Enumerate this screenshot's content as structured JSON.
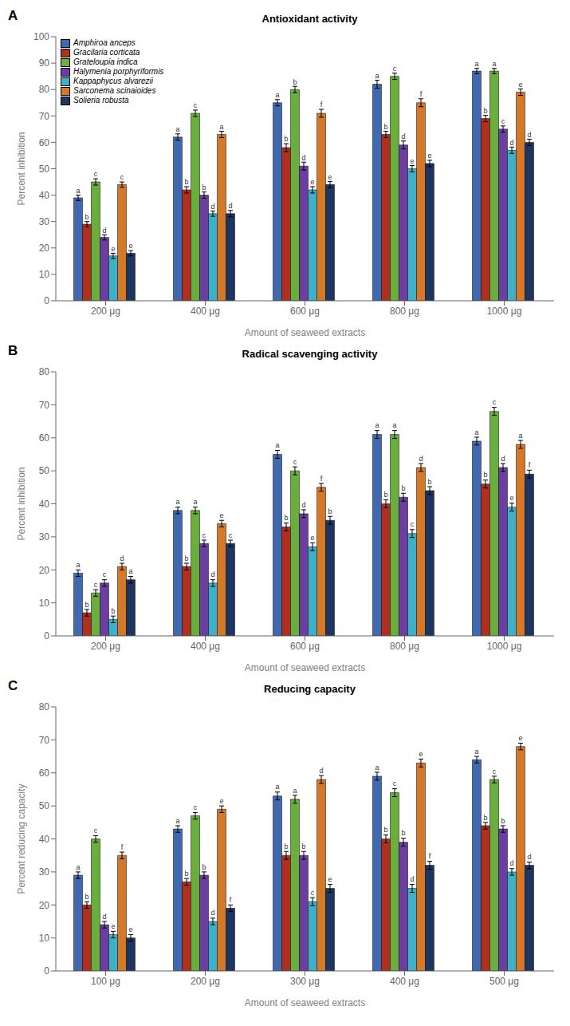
{
  "chart_data": [
    {
      "type": "bar",
      "title": "Antioxidant activity",
      "annotations": [
        "A"
      ],
      "xlabel": "Amount of seaweed extracts",
      "ylabel": "Percent inhibition",
      "categories": [
        "200 μg",
        "400 μg",
        "600 μg",
        "800 μg",
        "1000 μg"
      ],
      "ylim": [
        0,
        100
      ],
      "yticks": [
        0,
        10,
        20,
        30,
        40,
        50,
        60,
        70,
        80,
        90,
        100
      ],
      "grid": false,
      "legend": "upper left",
      "series": [
        {
          "name": "Amphiroa anceps",
          "color": "#4169B0",
          "values": [
            39,
            62,
            75,
            82,
            87
          ],
          "errors": [
            1.0,
            1.2,
            1.2,
            1.5,
            1.0
          ],
          "letters": [
            "a",
            "a",
            "a",
            "a",
            "a"
          ]
        },
        {
          "name": "Gracilaria corticata",
          "color": "#B03020",
          "values": [
            29,
            42,
            58,
            63,
            69
          ],
          "errors": [
            1.0,
            1.2,
            1.5,
            1.2,
            1.2
          ],
          "letters": [
            "b",
            "b",
            "b",
            "b",
            "b"
          ]
        },
        {
          "name": "Grateloupia indica",
          "color": "#6AAF3D",
          "values": [
            45,
            71,
            80,
            85,
            87
          ],
          "errors": [
            1.2,
            1.2,
            1.2,
            1.2,
            1.0
          ],
          "letters": [
            "c",
            "c",
            "b",
            "c",
            "a"
          ]
        },
        {
          "name": "Halymenia porphyriformis",
          "color": "#6B3FA0",
          "values": [
            24,
            40,
            51,
            59,
            65
          ],
          "errors": [
            1.0,
            1.2,
            1.5,
            1.5,
            1.2
          ],
          "letters": [
            "d",
            "b",
            "d",
            "d",
            "c"
          ]
        },
        {
          "name": "Kappaphycus alvarezii",
          "color": "#40B0C8",
          "values": [
            17,
            33,
            42,
            50,
            57
          ],
          "errors": [
            1.0,
            1.0,
            1.2,
            1.2,
            1.2
          ],
          "letters": [
            "e",
            "d",
            "e",
            "e",
            "d"
          ]
        },
        {
          "name": "Sarconema scinaioides",
          "color": "#D4782A",
          "values": [
            44,
            63,
            71,
            75,
            79
          ],
          "errors": [
            1.0,
            1.2,
            1.5,
            1.5,
            1.2
          ],
          "letters": [
            "c",
            "a",
            "f",
            "f",
            "e"
          ]
        },
        {
          "name": "Solieria robusta",
          "color": "#1E3560",
          "values": [
            18,
            33,
            44,
            52,
            60
          ],
          "errors": [
            1.0,
            1.2,
            1.2,
            1.2,
            1.2
          ],
          "letters": [
            "e",
            "d",
            "e",
            "e",
            "d"
          ]
        }
      ]
    },
    {
      "type": "bar",
      "title": "Radical scavenging activity",
      "annotations": [
        "B"
      ],
      "xlabel": "Amount of seaweed extracts",
      "ylabel": "Percent inhibition",
      "categories": [
        "200 μg",
        "400 μg",
        "600 μg",
        "800 μg",
        "1000 μg"
      ],
      "ylim": [
        0,
        80
      ],
      "yticks": [
        0,
        10,
        20,
        30,
        40,
        50,
        60,
        70,
        80
      ],
      "grid": false,
      "series": [
        {
          "name": "Amphiroa anceps",
          "color": "#4169B0",
          "values": [
            19,
            38,
            55,
            61,
            59
          ],
          "errors": [
            1.0,
            1.0,
            1.2,
            1.2,
            1.2
          ],
          "letters": [
            "a",
            "a",
            "a",
            "a",
            "a"
          ]
        },
        {
          "name": "Gracilaria corticata",
          "color": "#B03020",
          "values": [
            7,
            21,
            33,
            40,
            46
          ],
          "errors": [
            1.0,
            1.0,
            1.2,
            1.2,
            1.2
          ],
          "letters": [
            "b",
            "b",
            "b",
            "b",
            "b"
          ]
        },
        {
          "name": "Grateloupia indica",
          "color": "#6AAF3D",
          "values": [
            13,
            38,
            50,
            61,
            68
          ],
          "errors": [
            1.0,
            1.0,
            1.2,
            1.2,
            1.2
          ],
          "letters": [
            "c",
            "a",
            "c",
            "a",
            "c"
          ]
        },
        {
          "name": "Halymenia porphyriformis",
          "color": "#6B3FA0",
          "values": [
            16,
            28,
            37,
            42,
            51
          ],
          "errors": [
            1.0,
            1.0,
            1.2,
            1.2,
            1.2
          ],
          "letters": [
            "c",
            "c",
            "d",
            "b",
            "d"
          ]
        },
        {
          "name": "Kappaphycus alvarezii",
          "color": "#40B0C8",
          "values": [
            5,
            16,
            27,
            31,
            39
          ],
          "errors": [
            1.0,
            1.0,
            1.2,
            1.2,
            1.2
          ],
          "letters": [
            "b",
            "d",
            "e",
            "c",
            "e"
          ]
        },
        {
          "name": "Sarconema scinaioides",
          "color": "#D4782A",
          "values": [
            21,
            34,
            45,
            51,
            58
          ],
          "errors": [
            1.0,
            1.0,
            1.2,
            1.2,
            1.2
          ],
          "letters": [
            "d",
            "e",
            "f",
            "d",
            "a"
          ]
        },
        {
          "name": "Solieria robusta",
          "color": "#1E3560",
          "values": [
            17,
            28,
            35,
            44,
            49
          ],
          "errors": [
            1.0,
            1.0,
            1.2,
            1.2,
            1.2
          ],
          "letters": [
            "a",
            "c",
            "b",
            "b",
            "f"
          ]
        }
      ]
    },
    {
      "type": "bar",
      "title": "Reducing capacity",
      "annotations": [
        "C"
      ],
      "xlabel": "Amount of seaweed extracts",
      "ylabel": "Percent reducing capacity",
      "categories": [
        "100 μg",
        "200 μg",
        "300 μg",
        "400 μg",
        "500 μg"
      ],
      "ylim": [
        0,
        80
      ],
      "yticks": [
        0,
        10,
        20,
        30,
        40,
        50,
        60,
        70,
        80
      ],
      "grid": false,
      "series": [
        {
          "name": "Amphiroa anceps",
          "color": "#4169B0",
          "values": [
            29,
            43,
            53,
            59,
            64
          ],
          "errors": [
            1.0,
            1.0,
            1.2,
            1.2,
            1.0
          ],
          "letters": [
            "a",
            "a",
            "a",
            "a",
            "a"
          ]
        },
        {
          "name": "Gracilaria corticata",
          "color": "#B03020",
          "values": [
            20,
            27,
            35,
            40,
            44
          ],
          "errors": [
            1.0,
            1.0,
            1.2,
            1.2,
            1.0
          ],
          "letters": [
            "b",
            "b",
            "b",
            "b",
            "b"
          ]
        },
        {
          "name": "Grateloupia indica",
          "color": "#6AAF3D",
          "values": [
            40,
            47,
            52,
            54,
            58
          ],
          "errors": [
            1.0,
            1.0,
            1.2,
            1.2,
            1.0
          ],
          "letters": [
            "c",
            "c",
            "a",
            "c",
            "c"
          ]
        },
        {
          "name": "Halymenia porphyriformis",
          "color": "#6B3FA0",
          "values": [
            14,
            29,
            35,
            39,
            43
          ],
          "errors": [
            1.0,
            1.0,
            1.2,
            1.2,
            1.0
          ],
          "letters": [
            "d",
            "b",
            "b",
            "b",
            "b"
          ]
        },
        {
          "name": "Kappaphycus alvarezii",
          "color": "#40B0C8",
          "values": [
            11,
            15,
            21,
            25,
            30
          ],
          "errors": [
            1.0,
            1.0,
            1.2,
            1.2,
            1.0
          ],
          "letters": [
            "e",
            "d",
            "c",
            "d",
            "d"
          ]
        },
        {
          "name": "Sarconema scinaioides",
          "color": "#D4782A",
          "values": [
            35,
            49,
            58,
            63,
            68
          ],
          "errors": [
            1.0,
            1.0,
            1.2,
            1.2,
            1.0
          ],
          "letters": [
            "f",
            "e",
            "d",
            "e",
            "e"
          ]
        },
        {
          "name": "Solieria robusta",
          "color": "#1E3560",
          "values": [
            10,
            19,
            25,
            32,
            32
          ],
          "errors": [
            1.0,
            1.0,
            1.2,
            1.2,
            1.0
          ],
          "letters": [
            "e",
            "f",
            "e",
            "f",
            "d"
          ]
        }
      ]
    }
  ]
}
